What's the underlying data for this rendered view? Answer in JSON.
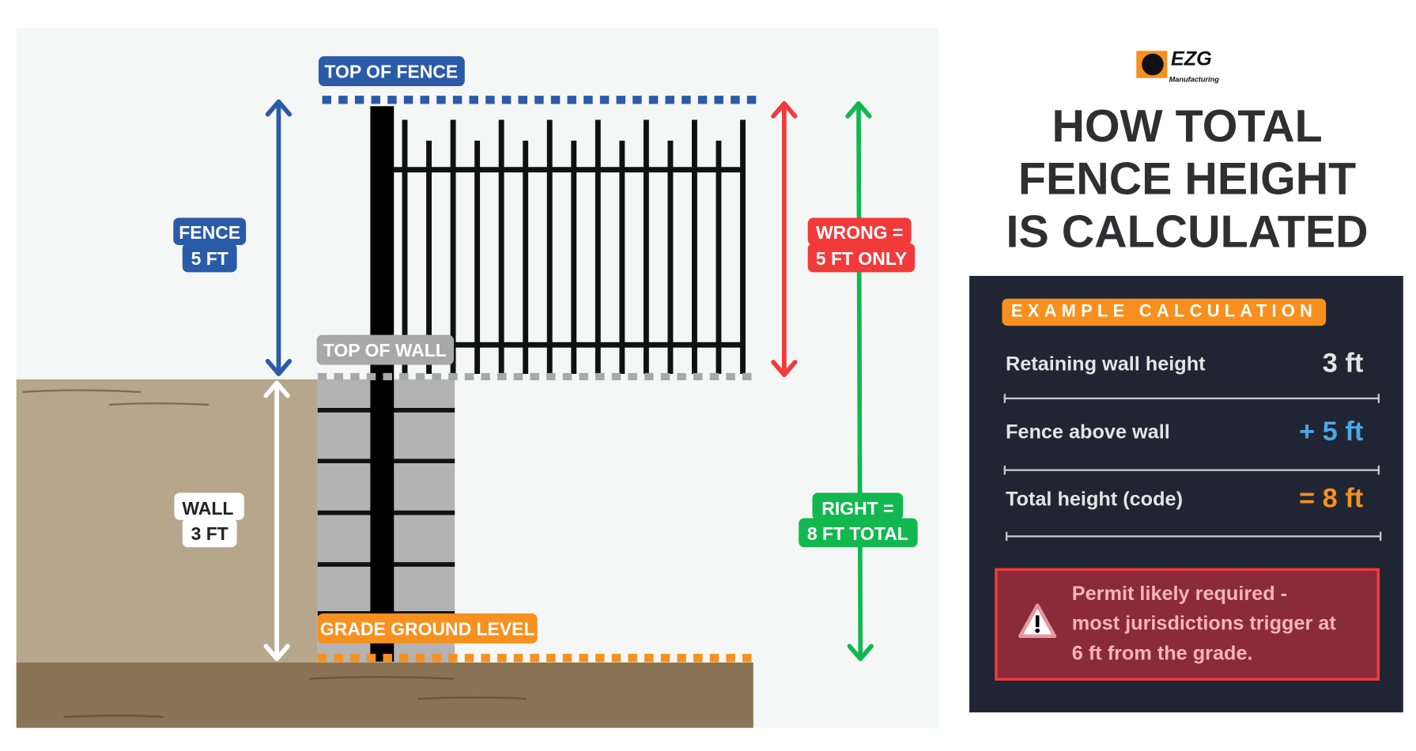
{
  "logo": {
    "text": "EZG",
    "subtext": "Manufacturing"
  },
  "title": {
    "line1": "HOW TOTAL",
    "line2": "FENCE HEIGHT",
    "line3": "IS CALCULATED"
  },
  "diagram": {
    "top_of_fence": "TOP OF FENCE",
    "top_of_wall": "TOP OF WALL",
    "grade": "GRADE GROUND LEVEL",
    "fence_label": [
      "FENCE",
      "5 FT"
    ],
    "wall_label": [
      "WALL",
      "3 FT"
    ],
    "wrong_label": [
      "WRONG =",
      "5 FT ONLY"
    ],
    "right_label": [
      "RIGHT =",
      "8 FT TOTAL"
    ]
  },
  "colors": {
    "blue": "#2a5ba8",
    "red": "#f23a3a",
    "green": "#12b84f",
    "orange": "#f7901e",
    "gray": "#a8a8a8",
    "panel": "#1f2532"
  },
  "calc": {
    "badge": "EXAMPLE CALCULATION",
    "rows": [
      {
        "label": "Retaining wall height",
        "value": "3 ft",
        "color": "#e4e4e4"
      },
      {
        "label": "Fence above wall",
        "value": "+ 5 ft",
        "color": "#4aa8e8"
      },
      {
        "label": "Total height (code)",
        "value": "= 8 ft",
        "color": "#f7901e"
      }
    ],
    "warning": [
      "Permit likely required -",
      "most jurisdictions trigger at",
      "6 ft from the grade."
    ],
    "warning_icon": "warning-triangle-icon"
  }
}
